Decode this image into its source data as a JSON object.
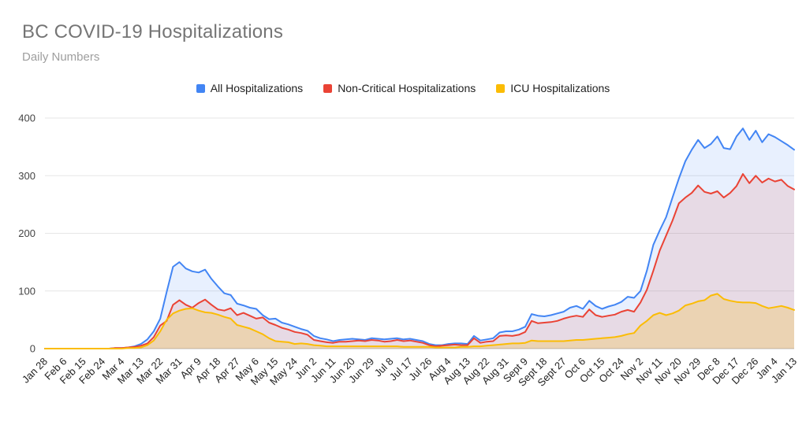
{
  "page": {
    "background": "#ffffff"
  },
  "header": {
    "title": "BC COVID-19 Hospitalizations",
    "subtitle": "Daily Numbers"
  },
  "chart_data": {
    "type": "area",
    "title": "BC COVID-19 Hospitalizations",
    "subtitle": "Daily Numbers",
    "grid": true,
    "legend": {
      "position": "top"
    },
    "y_axis": {
      "min": 0,
      "max": 400,
      "tick_labels": [
        "0",
        "100",
        "200",
        "300",
        "400"
      ]
    },
    "x_axis": {
      "tick_interval_days": 9,
      "tick_labels": [
        "Jan 28",
        "Feb 6",
        "Feb 15",
        "Feb 24",
        "Mar 4",
        "Mar 13",
        "Mar 22",
        "Mar 31",
        "Apr 9",
        "Apr 18",
        "Apr 27",
        "May 6",
        "May 15",
        "May 24",
        "Jun 2",
        "Jun 11",
        "Jun 20",
        "Jun 29",
        "Jul 8",
        "Jul 17",
        "Jul 26",
        "Aug 4",
        "Aug 13",
        "Aug 22",
        "Aug 31",
        "Sept 9",
        "Sept 18",
        "Sept 27",
        "Oct 6",
        "Oct 15",
        "Oct 24",
        "Nov 2",
        "Nov 11",
        "Nov 20",
        "Nov 29",
        "Dec 8",
        "Dec 17",
        "Dec 26",
        "Jan 4",
        "Jan 13"
      ]
    },
    "sample_interval_days": 3,
    "dates": [
      "Jan 28",
      "Jan 31",
      "Feb 3",
      "Feb 6",
      "Feb 9",
      "Feb 12",
      "Feb 15",
      "Feb 18",
      "Feb 21",
      "Feb 24",
      "Feb 27",
      "Mar 1",
      "Mar 4",
      "Mar 7",
      "Mar 10",
      "Mar 13",
      "Mar 16",
      "Mar 19",
      "Mar 22",
      "Mar 25",
      "Mar 28",
      "Mar 31",
      "Apr 3",
      "Apr 6",
      "Apr 9",
      "Apr 12",
      "Apr 15",
      "Apr 18",
      "Apr 21",
      "Apr 24",
      "Apr 27",
      "Apr 30",
      "May 3",
      "May 6",
      "May 9",
      "May 12",
      "May 15",
      "May 18",
      "May 21",
      "May 24",
      "May 27",
      "May 30",
      "Jun 2",
      "Jun 5",
      "Jun 8",
      "Jun 11",
      "Jun 14",
      "Jun 17",
      "Jun 20",
      "Jun 23",
      "Jun 26",
      "Jun 29",
      "Jul 2",
      "Jul 5",
      "Jul 8",
      "Jul 11",
      "Jul 14",
      "Jul 17",
      "Jul 20",
      "Jul 23",
      "Jul 26",
      "Jul 29",
      "Aug 1",
      "Aug 4",
      "Aug 7",
      "Aug 10",
      "Aug 13",
      "Aug 16",
      "Aug 19",
      "Aug 22",
      "Aug 25",
      "Aug 28",
      "Aug 31",
      "Sept 3",
      "Sept 6",
      "Sept 9",
      "Sept 12",
      "Sept 15",
      "Sept 18",
      "Sept 21",
      "Sept 24",
      "Sept 27",
      "Sept 30",
      "Oct 3",
      "Oct 6",
      "Oct 9",
      "Oct 12",
      "Oct 15",
      "Oct 18",
      "Oct 21",
      "Oct 24",
      "Oct 27",
      "Oct 30",
      "Nov 2",
      "Nov 5",
      "Nov 8",
      "Nov 11",
      "Nov 14",
      "Nov 17",
      "Nov 20",
      "Nov 23",
      "Nov 26",
      "Nov 29",
      "Dec 2",
      "Dec 5",
      "Dec 8",
      "Dec 11",
      "Dec 14",
      "Dec 17",
      "Dec 20",
      "Dec 23",
      "Dec 26",
      "Dec 29",
      "Jan 1",
      "Jan 4",
      "Jan 7",
      "Jan 10",
      "Jan 13"
    ],
    "series": [
      {
        "id": "all",
        "name": "All Hospitalizations",
        "color": "#4285F4",
        "fill": "rgba(66,133,244,0.12)",
        "values": [
          0,
          0,
          0,
          0,
          0,
          0,
          0,
          0,
          0,
          0,
          0,
          1,
          1,
          2,
          4,
          8,
          16,
          30,
          52,
          98,
          142,
          150,
          139,
          134,
          132,
          137,
          121,
          108,
          96,
          93,
          78,
          75,
          71,
          69,
          58,
          51,
          52,
          45,
          42,
          38,
          34,
          31,
          22,
          18,
          16,
          13,
          15,
          16,
          17,
          16,
          15,
          18,
          17,
          16,
          17,
          18,
          16,
          17,
          15,
          13,
          8,
          6,
          6,
          8,
          9,
          9,
          8,
          22,
          14,
          16,
          18,
          28,
          30,
          30,
          33,
          38,
          60,
          57,
          56,
          58,
          61,
          64,
          71,
          74,
          69,
          83,
          74,
          69,
          73,
          76,
          81,
          90,
          88,
          100,
          135,
          180,
          205,
          228,
          262,
          295,
          325,
          345,
          362,
          348,
          355,
          368,
          348,
          346,
          368,
          382,
          362,
          378,
          358,
          372,
          367,
          360,
          353,
          345
        ]
      },
      {
        "id": "noncritical",
        "name": "Non-Critical Hospitalizations",
        "color": "#EA4335",
        "fill": "rgba(234,67,53,0.12)",
        "values": [
          0,
          0,
          0,
          0,
          0,
          0,
          0,
          0,
          0,
          0,
          0,
          1,
          1,
          2,
          3,
          5,
          9,
          20,
          40,
          48,
          76,
          84,
          76,
          71,
          79,
          85,
          76,
          68,
          66,
          70,
          58,
          62,
          57,
          52,
          54,
          45,
          41,
          36,
          33,
          29,
          27,
          24,
          15,
          13,
          11,
          10,
          12,
          12,
          13,
          14,
          13,
          15,
          14,
          12,
          13,
          15,
          13,
          14,
          12,
          10,
          6,
          4,
          5,
          6,
          7,
          6,
          6,
          18,
          10,
          12,
          13,
          22,
          23,
          22,
          24,
          29,
          48,
          44,
          45,
          46,
          48,
          52,
          55,
          57,
          55,
          68,
          58,
          55,
          57,
          59,
          64,
          67,
          64,
          80,
          102,
          135,
          170,
          196,
          222,
          252,
          262,
          270,
          283,
          272,
          269,
          273,
          262,
          270,
          282,
          303,
          287,
          300,
          288,
          295,
          290,
          293,
          282,
          276
        ]
      },
      {
        "id": "icu",
        "name": "ICU Hospitalizations",
        "color": "#FBBC04",
        "fill": "rgba(251,188,4,0.22)",
        "values": [
          0,
          0,
          0,
          0,
          0,
          0,
          0,
          0,
          0,
          0,
          0,
          0,
          0,
          1,
          1,
          2,
          6,
          14,
          30,
          50,
          61,
          66,
          69,
          70,
          66,
          63,
          62,
          59,
          55,
          52,
          41,
          38,
          35,
          30,
          25,
          18,
          13,
          12,
          11,
          8,
          9,
          8,
          6,
          5,
          4,
          4,
          4,
          4,
          4,
          4,
          4,
          4,
          4,
          4,
          4,
          4,
          3,
          3,
          3,
          3,
          3,
          2,
          2,
          2,
          2,
          3,
          3,
          4,
          4,
          5,
          6,
          7,
          8,
          9,
          9,
          10,
          14,
          13,
          13,
          13,
          13,
          13,
          14,
          15,
          15,
          16,
          17,
          18,
          19,
          20,
          22,
          25,
          27,
          40,
          48,
          58,
          62,
          58,
          61,
          66,
          75,
          78,
          82,
          84,
          92,
          95,
          86,
          83,
          81,
          80,
          80,
          79,
          74,
          70,
          72,
          74,
          71,
          67
        ]
      }
    ]
  }
}
